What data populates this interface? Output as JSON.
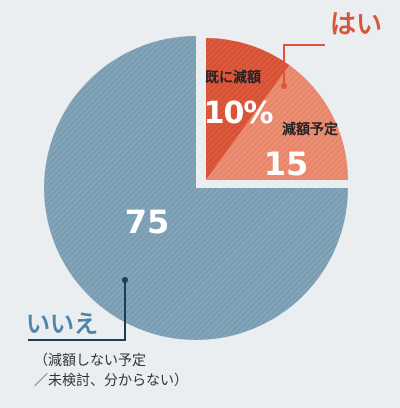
{
  "chart_data": {
    "type": "pie",
    "slices": [
      {
        "label": "既に減額",
        "value": 10,
        "value_label": "10%",
        "color": "#d9563a",
        "group": "yes"
      },
      {
        "label": "減額予定",
        "value": 15,
        "value_label": "15",
        "color": "#e8876b",
        "group": "yes"
      },
      {
        "label": "",
        "value": 75,
        "value_label": "75",
        "color": "#7fa0b4",
        "group": "no"
      }
    ],
    "callouts": {
      "yes": {
        "text": "はい",
        "color": "#d9563a"
      },
      "no": {
        "text": "いいえ",
        "color": "#4f84a8"
      }
    },
    "note_lines": [
      "（減額しない予定",
      "／未検討、分からない）"
    ]
  }
}
